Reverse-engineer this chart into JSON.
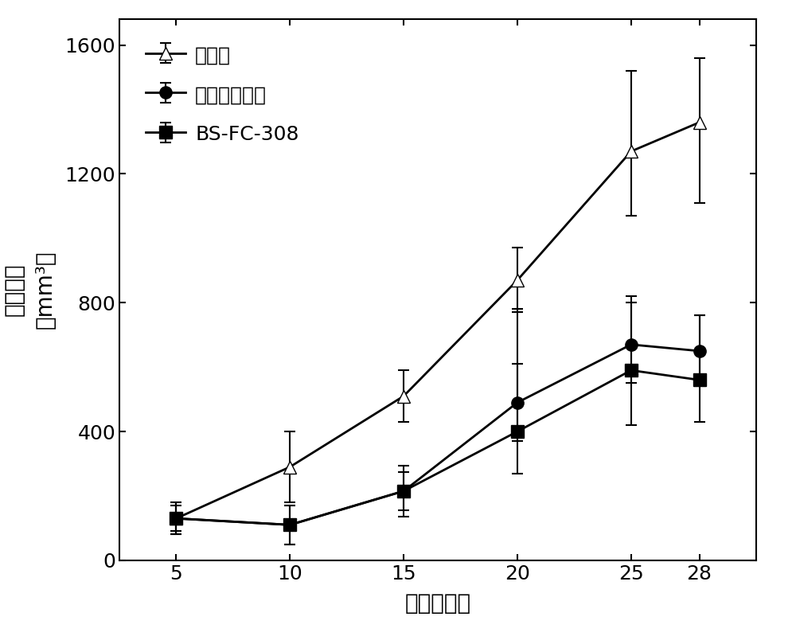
{
  "x": [
    5,
    10,
    15,
    20,
    25,
    28
  ],
  "series": [
    {
      "label": "无菌水",
      "y": [
        130,
        290,
        510,
        870,
        1270,
        1360
      ],
      "yerr_low": [
        50,
        110,
        80,
        100,
        200,
        250
      ],
      "yerr_high": [
        50,
        110,
        80,
        100,
        250,
        200
      ],
      "marker": "^",
      "marker_size": 11,
      "linestyle": "-",
      "color": "#000000",
      "markerfacecolor": "white",
      "markeredgecolor": "#000000",
      "linewidth": 2.0
    },
    {
      "label": "盐酸厕洛替尼",
      "y": [
        130,
        110,
        215,
        490,
        670,
        650
      ],
      "yerr_low": [
        40,
        60,
        60,
        120,
        120,
        110
      ],
      "yerr_high": [
        40,
        60,
        60,
        120,
        130,
        110
      ],
      "marker": "o",
      "marker_size": 11,
      "linestyle": "-",
      "color": "#000000",
      "markerfacecolor": "#000000",
      "markeredgecolor": "#000000",
      "linewidth": 2.0
    },
    {
      "label": "BS-FC-308",
      "y": [
        130,
        110,
        215,
        400,
        590,
        560
      ],
      "yerr_low": [
        50,
        60,
        80,
        130,
        170,
        130
      ],
      "yerr_high": [
        50,
        60,
        80,
        380,
        230,
        200
      ],
      "marker": "s",
      "marker_size": 11,
      "linestyle": "-",
      "color": "#000000",
      "markerfacecolor": "#000000",
      "markeredgecolor": "#000000",
      "linewidth": 2.0
    }
  ],
  "xlabel": "时间（天）",
  "ylabel_line1": "肿瘾体积",
  "ylabel_line2": "（mm³）",
  "xlim": [
    2.5,
    30.5
  ],
  "ylim": [
    0,
    1680
  ],
  "yticks": [
    0,
    400,
    800,
    1200,
    1600
  ],
  "xticks": [
    5,
    10,
    15,
    20,
    25,
    28
  ],
  "label_fontsize": 20,
  "tick_fontsize": 18,
  "legend_fontsize": 18,
  "background_color": "#ffffff",
  "capsize": 5
}
